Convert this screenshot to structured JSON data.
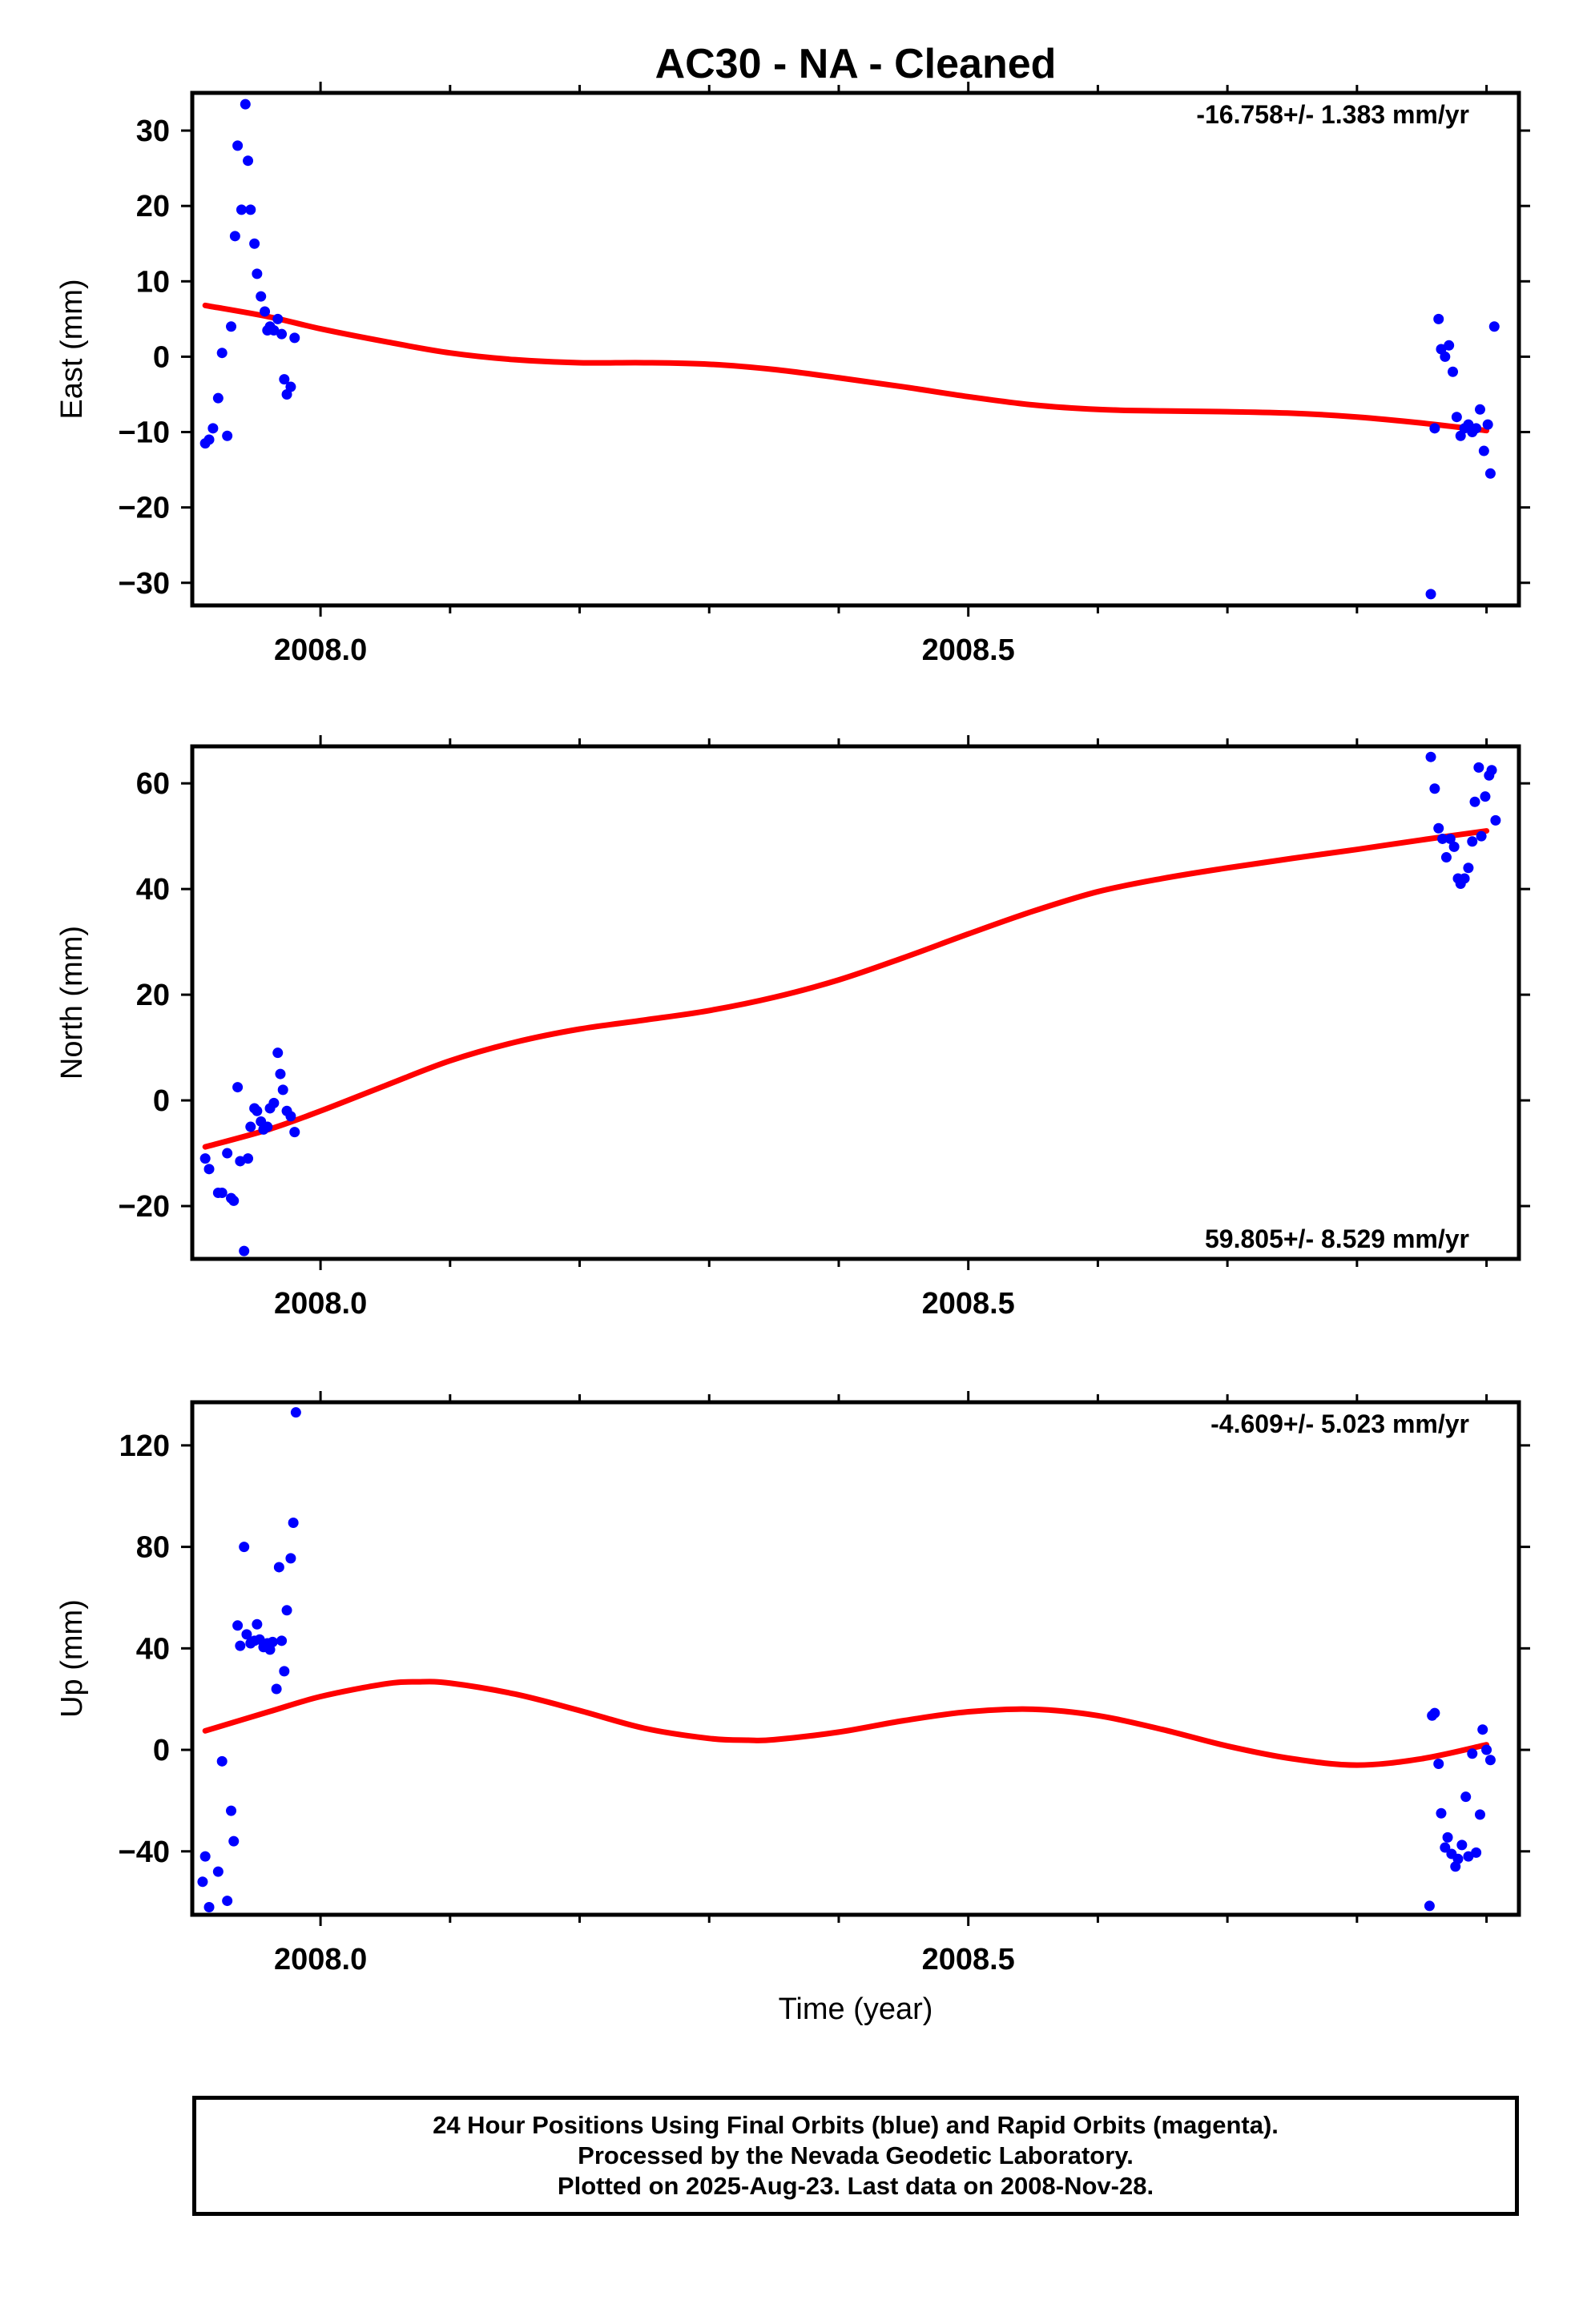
{
  "title": "AC30  - NA - Cleaned",
  "colors": {
    "data_points": "#0000ff",
    "model_curve": "#ff0000",
    "frame": "#000000"
  },
  "footer": {
    "line1": "24 Hour Positions Using Final Orbits (blue) and Rapid Orbits (magenta).",
    "line2": "Processed by the Nevada Geodetic Laboratory.",
    "line3": "Plotted on 2025-Aug-23. Last data on 2008-Nov-28."
  },
  "chart_data": [
    {
      "type": "scatter",
      "title": "AC30  - NA - Cleaned",
      "xlabel": "",
      "ylabel": "East (mm)",
      "rate_text": "-16.758+/- 1.383 mm/yr",
      "rate_position": "top-right",
      "xlim": [
        2007.901,
        2008.925
      ],
      "ylim": [
        -33,
        35
      ],
      "x_ticks": [
        2008.0,
        2008.5
      ],
      "x_tick_labels": [
        "2008.0",
        "2008.5"
      ],
      "y_ticks": [
        -30,
        -20,
        -10,
        0,
        10,
        20,
        30
      ],
      "y_tick_labels": [
        "−30",
        "−20",
        "−10",
        "0",
        "10",
        "20",
        "30"
      ],
      "grid": false,
      "points": [
        [
          2007.911,
          -11.5
        ],
        [
          2007.914,
          -11.0
        ],
        [
          2007.917,
          -9.5
        ],
        [
          2007.921,
          -5.5
        ],
        [
          2007.924,
          0.5
        ],
        [
          2007.928,
          -10.5
        ],
        [
          2007.931,
          4.0
        ],
        [
          2007.934,
          16.0
        ],
        [
          2007.936,
          28.0
        ],
        [
          2007.939,
          19.5
        ],
        [
          2007.942,
          33.5
        ],
        [
          2007.944,
          26.0
        ],
        [
          2007.946,
          19.5
        ],
        [
          2007.949,
          15.0
        ],
        [
          2007.951,
          11.0
        ],
        [
          2007.954,
          8.0
        ],
        [
          2007.957,
          6.0
        ],
        [
          2007.959,
          3.5
        ],
        [
          2007.961,
          4.0
        ],
        [
          2007.964,
          3.5
        ],
        [
          2007.967,
          5.0
        ],
        [
          2007.97,
          3.0
        ],
        [
          2007.972,
          -3.0
        ],
        [
          2007.974,
          -5.0
        ],
        [
          2007.977,
          -4.0
        ],
        [
          2007.98,
          2.5
        ],
        [
          2008.857,
          -31.5
        ],
        [
          2008.86,
          -9.5
        ],
        [
          2008.863,
          5.0
        ],
        [
          2008.865,
          1.0
        ],
        [
          2008.868,
          0.0
        ],
        [
          2008.871,
          1.5
        ],
        [
          2008.874,
          -2.0
        ],
        [
          2008.877,
          -8.0
        ],
        [
          2008.88,
          -10.5
        ],
        [
          2008.883,
          -9.5
        ],
        [
          2008.886,
          -9.0
        ],
        [
          2008.889,
          -10.0
        ],
        [
          2008.892,
          -9.5
        ],
        [
          2008.895,
          -7.0
        ],
        [
          2008.898,
          -12.5
        ],
        [
          2008.901,
          -9.0
        ],
        [
          2008.903,
          -15.5
        ],
        [
          2008.906,
          4.0
        ]
      ],
      "model": {
        "x": [
          2007.911,
          2007.96,
          2008.0,
          2008.05,
          2008.1,
          2008.15,
          2008.2,
          2008.25,
          2008.3,
          2008.35,
          2008.4,
          2008.45,
          2008.5,
          2008.55,
          2008.6,
          2008.65,
          2008.7,
          2008.75,
          2008.8,
          2008.85,
          2008.9
        ],
        "y": [
          6.8,
          5.3,
          3.7,
          2.0,
          0.5,
          -0.4,
          -0.8,
          -0.8,
          -1.0,
          -1.7,
          -2.8,
          -4.0,
          -5.3,
          -6.4,
          -7.0,
          -7.2,
          -7.3,
          -7.5,
          -8.0,
          -8.8,
          -9.8
        ]
      }
    },
    {
      "type": "scatter",
      "xlabel": "",
      "ylabel": "North (mm)",
      "rate_text": "59.805+/- 8.529 mm/yr",
      "rate_position": "bottom-right",
      "xlim": [
        2007.901,
        2008.925
      ],
      "ylim": [
        -30,
        67
      ],
      "x_ticks": [
        2008.0,
        2008.5
      ],
      "x_tick_labels": [
        "2008.0",
        "2008.5"
      ],
      "y_ticks": [
        -20,
        0,
        20,
        40,
        60
      ],
      "y_tick_labels": [
        "−20",
        "0",
        "20",
        "40",
        "60"
      ],
      "grid": false,
      "points": [
        [
          2007.911,
          -11.0
        ],
        [
          2007.914,
          -13.0
        ],
        [
          2007.921,
          -17.5
        ],
        [
          2007.924,
          -17.5
        ],
        [
          2007.928,
          -10.0
        ],
        [
          2007.931,
          -18.5
        ],
        [
          2007.933,
          -19.0
        ],
        [
          2007.936,
          2.5
        ],
        [
          2007.938,
          -11.5
        ],
        [
          2007.941,
          -28.5
        ],
        [
          2007.944,
          -11.0
        ],
        [
          2007.946,
          -5.0
        ],
        [
          2007.949,
          -1.5
        ],
        [
          2007.951,
          -2.0
        ],
        [
          2007.954,
          -4.0
        ],
        [
          2007.956,
          -5.5
        ],
        [
          2007.959,
          -5.0
        ],
        [
          2007.961,
          -1.5
        ],
        [
          2007.964,
          -0.5
        ],
        [
          2007.967,
          9.0
        ],
        [
          2007.969,
          5.0
        ],
        [
          2007.971,
          2.0
        ],
        [
          2007.974,
          -2.0
        ],
        [
          2007.977,
          -3.0
        ],
        [
          2007.98,
          -6.0
        ],
        [
          2008.857,
          65.0
        ],
        [
          2008.86,
          59.0
        ],
        [
          2008.863,
          51.5
        ],
        [
          2008.866,
          49.5
        ],
        [
          2008.869,
          46.0
        ],
        [
          2008.872,
          49.5
        ],
        [
          2008.875,
          48.0
        ],
        [
          2008.878,
          42.0
        ],
        [
          2008.88,
          41.0
        ],
        [
          2008.883,
          42.0
        ],
        [
          2008.886,
          44.0
        ],
        [
          2008.889,
          49.0
        ],
        [
          2008.891,
          56.5
        ],
        [
          2008.894,
          63.0
        ],
        [
          2008.896,
          50.0
        ],
        [
          2008.899,
          57.5
        ],
        [
          2008.902,
          61.5
        ],
        [
          2008.904,
          62.5
        ],
        [
          2008.907,
          53.0
        ]
      ],
      "model": {
        "x": [
          2007.911,
          2007.96,
          2008.0,
          2008.05,
          2008.1,
          2008.15,
          2008.2,
          2008.25,
          2008.3,
          2008.35,
          2008.4,
          2008.45,
          2008.5,
          2008.55,
          2008.6,
          2008.65,
          2008.7,
          2008.75,
          2008.8,
          2008.85,
          2008.9
        ],
        "y": [
          -8.8,
          -5.5,
          -2.0,
          2.8,
          7.5,
          11.0,
          13.5,
          15.2,
          17.0,
          19.5,
          22.8,
          27.0,
          31.5,
          35.8,
          39.5,
          42.0,
          44.0,
          45.8,
          47.5,
          49.3,
          51.0
        ]
      }
    },
    {
      "type": "scatter",
      "xlabel": "Time (year)",
      "ylabel": "Up (mm)",
      "rate_text": "-4.609+/- 5.023 mm/yr",
      "rate_position": "top-right",
      "xlim": [
        2007.901,
        2008.925
      ],
      "ylim": [
        -65,
        137
      ],
      "x_ticks": [
        2008.0,
        2008.5
      ],
      "x_tick_labels": [
        "2008.0",
        "2008.5"
      ],
      "y_ticks": [
        -40,
        0,
        40,
        80,
        120
      ],
      "y_tick_labels": [
        "−40",
        "0",
        "40",
        "80",
        "120"
      ],
      "grid": false,
      "points": [
        [
          2007.909,
          -52.0
        ],
        [
          2007.911,
          -42.0
        ],
        [
          2007.914,
          -62.0
        ],
        [
          2007.921,
          -48.0
        ],
        [
          2007.924,
          -4.5
        ],
        [
          2007.928,
          -59.5
        ],
        [
          2007.931,
          -24.0
        ],
        [
          2007.933,
          -36.0
        ],
        [
          2007.936,
          49.0
        ],
        [
          2007.938,
          41.0
        ],
        [
          2007.941,
          80.0
        ],
        [
          2007.943,
          45.5
        ],
        [
          2007.946,
          42.0
        ],
        [
          2007.949,
          43.0
        ],
        [
          2007.951,
          49.5
        ],
        [
          2007.953,
          43.5
        ],
        [
          2007.956,
          40.5
        ],
        [
          2007.959,
          42.0
        ],
        [
          2007.961,
          39.5
        ],
        [
          2007.963,
          42.5
        ],
        [
          2007.966,
          24.0
        ],
        [
          2007.968,
          72.0
        ],
        [
          2007.97,
          43.0
        ],
        [
          2007.972,
          31.0
        ],
        [
          2007.974,
          55.0
        ],
        [
          2007.977,
          75.5
        ],
        [
          2007.979,
          89.5
        ],
        [
          2007.981,
          133.0
        ],
        [
          2008.856,
          -61.5
        ],
        [
          2008.858,
          13.5
        ],
        [
          2008.86,
          14.5
        ],
        [
          2008.863,
          -5.5
        ],
        [
          2008.865,
          -25.0
        ],
        [
          2008.868,
          -38.5
        ],
        [
          2008.87,
          -34.5
        ],
        [
          2008.873,
          -41.0
        ],
        [
          2008.876,
          -46.0
        ],
        [
          2008.878,
          -43.0
        ],
        [
          2008.881,
          -37.5
        ],
        [
          2008.884,
          -18.5
        ],
        [
          2008.886,
          -42.0
        ],
        [
          2008.889,
          -1.5
        ],
        [
          2008.892,
          -40.5
        ],
        [
          2008.895,
          -25.5
        ],
        [
          2008.897,
          8.0
        ],
        [
          2008.9,
          0.0
        ],
        [
          2008.903,
          -4.0
        ]
      ],
      "model": {
        "x": [
          2007.911,
          2007.96,
          2008.0,
          2008.05,
          2008.075,
          2008.1,
          2008.15,
          2008.2,
          2008.25,
          2008.3,
          2008.33,
          2008.35,
          2008.4,
          2008.45,
          2008.5,
          2008.55,
          2008.6,
          2008.65,
          2008.7,
          2008.75,
          2008.8,
          2008.85,
          2008.9
        ],
        "y": [
          7.5,
          15.0,
          21.0,
          26.0,
          26.8,
          26.3,
          22.0,
          15.5,
          8.5,
          4.5,
          3.8,
          4.0,
          7.0,
          11.5,
          15.0,
          16.0,
          13.5,
          8.0,
          1.5,
          -3.5,
          -6.0,
          -3.5,
          2.0
        ]
      }
    }
  ]
}
